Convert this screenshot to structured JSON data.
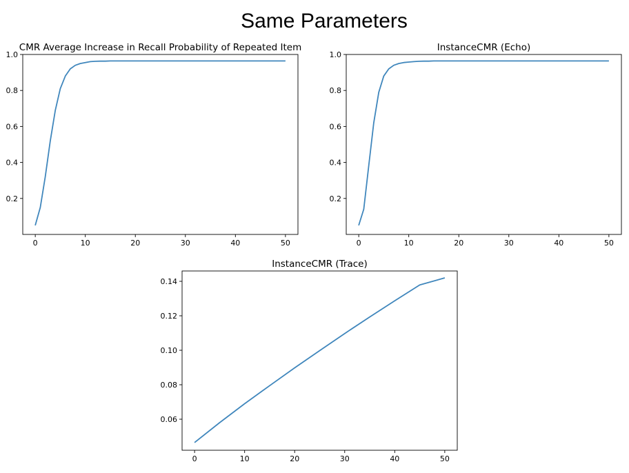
{
  "figure": {
    "title": "Same Parameters"
  },
  "chart_data": [
    {
      "type": "line",
      "title": "CMR Average Increase in Recall Probability of Repeated Item",
      "xlabel": "",
      "ylabel": "",
      "xlim": [
        -2.5,
        52.5
      ],
      "ylim": [
        0.0,
        1.0
      ],
      "xticks": [
        0,
        10,
        20,
        30,
        40,
        50
      ],
      "yticks": [
        0.2,
        0.4,
        0.6,
        0.8,
        1.0
      ],
      "ytick_labels": [
        "0.2",
        "0.4",
        "0.6",
        "0.8",
        "1.0"
      ],
      "color": "#3f86bc",
      "series": [
        {
          "x": [
            0,
            1,
            2,
            3,
            4,
            5,
            6,
            7,
            8,
            9,
            10,
            11,
            12,
            13,
            14,
            15,
            20,
            25,
            30,
            35,
            40,
            45,
            50
          ],
          "y": [
            0.05,
            0.15,
            0.32,
            0.52,
            0.69,
            0.81,
            0.88,
            0.92,
            0.94,
            0.95,
            0.955,
            0.96,
            0.962,
            0.963,
            0.963,
            0.964,
            0.964,
            0.964,
            0.964,
            0.964,
            0.964,
            0.964,
            0.964
          ]
        }
      ]
    },
    {
      "type": "line",
      "title": "InstanceCMR (Echo)",
      "xlabel": "",
      "ylabel": "",
      "xlim": [
        -2.5,
        52.5
      ],
      "ylim": [
        0.0,
        1.0
      ],
      "xticks": [
        0,
        10,
        20,
        30,
        40,
        50
      ],
      "yticks": [
        0.2,
        0.4,
        0.6,
        0.8,
        1.0
      ],
      "ytick_labels": [
        "0.2",
        "0.4",
        "0.6",
        "0.8",
        "1.0"
      ],
      "color": "#3f86bc",
      "series": [
        {
          "x": [
            0,
            1,
            2,
            3,
            4,
            5,
            6,
            7,
            8,
            9,
            10,
            11,
            12,
            13,
            14,
            15,
            20,
            25,
            30,
            35,
            40,
            45,
            50
          ],
          "y": [
            0.05,
            0.14,
            0.38,
            0.62,
            0.79,
            0.88,
            0.92,
            0.94,
            0.95,
            0.955,
            0.958,
            0.96,
            0.962,
            0.963,
            0.963,
            0.964,
            0.964,
            0.964,
            0.964,
            0.964,
            0.964,
            0.964,
            0.964
          ]
        }
      ]
    },
    {
      "type": "line",
      "title": "InstanceCMR (Trace)",
      "xlabel": "",
      "ylabel": "",
      "xlim": [
        -2.5,
        52.5
      ],
      "ylim": [
        0.042,
        0.146
      ],
      "xticks": [
        0,
        10,
        20,
        30,
        40,
        50
      ],
      "yticks": [
        0.06,
        0.08,
        0.1,
        0.12,
        0.14
      ],
      "ytick_labels": [
        "0.06",
        "0.08",
        "0.10",
        "0.12",
        "0.14"
      ],
      "color": "#3f86bc",
      "series": [
        {
          "x": [
            0,
            5,
            10,
            15,
            20,
            25,
            30,
            35,
            40,
            45,
            50
          ],
          "y": [
            0.0465,
            0.058,
            0.069,
            0.0795,
            0.0898,
            0.0998,
            0.1097,
            0.1193,
            0.1287,
            0.1379,
            0.142
          ]
        }
      ]
    }
  ]
}
